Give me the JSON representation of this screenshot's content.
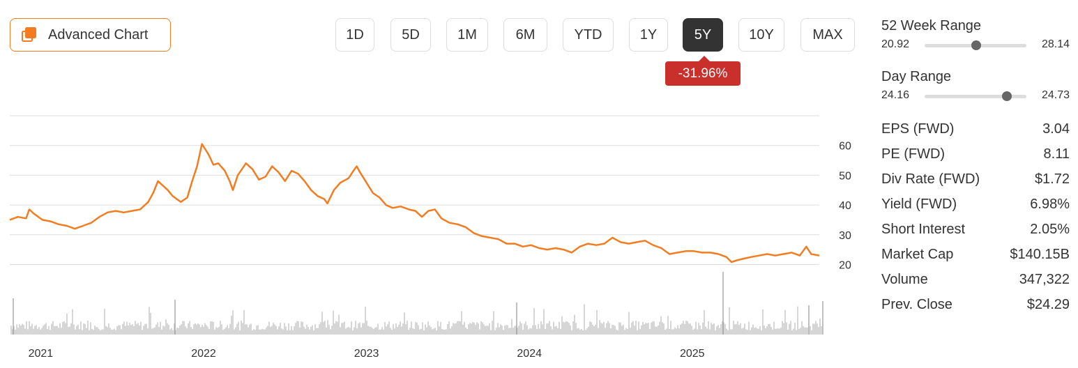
{
  "header": {
    "advanced_chart_label": "Advanced Chart",
    "advanced_chart_icon": "layers-icon",
    "ranges": [
      "1D",
      "5D",
      "1M",
      "6M",
      "YTD",
      "1Y",
      "5Y",
      "10Y",
      "MAX"
    ],
    "active_range": "5Y",
    "change_label": "-31.96%"
  },
  "colors": {
    "accent": "#f47c20",
    "line": "#f47c20",
    "volume": "#bbbbbb",
    "grid": "#dddddd",
    "negative": "#c9302c",
    "active_button": "#333333"
  },
  "ranges_panel": {
    "week52": {
      "title": "52 Week Range",
      "low": "20.92",
      "high": "28.14",
      "position": 0.51
    },
    "day": {
      "title": "Day Range",
      "low": "24.16",
      "high": "24.73",
      "position": 0.81
    }
  },
  "stats": [
    {
      "label": "EPS (FWD)",
      "value": "3.04"
    },
    {
      "label": "PE (FWD)",
      "value": "8.11"
    },
    {
      "label": "Div Rate (FWD)",
      "value": "$1.72"
    },
    {
      "label": "Yield (FWD)",
      "value": "6.98%"
    },
    {
      "label": "Short Interest",
      "value": "2.05%"
    },
    {
      "label": "Market Cap",
      "value": "$140.15B"
    },
    {
      "label": "Volume",
      "value": "347,322"
    },
    {
      "label": "Prev. Close",
      "value": "$24.29"
    }
  ],
  "chart_data": {
    "type": "line",
    "ytick_labels": [
      "20",
      "30",
      "40",
      "50",
      "60"
    ],
    "ylim": [
      18,
      70
    ],
    "xtick_labels": [
      "2021",
      "2022",
      "2023",
      "2024",
      "2025"
    ],
    "xlim": [
      2020.85,
      2025.82
    ],
    "grid": true,
    "price_series": [
      [
        2020.85,
        35.0
      ],
      [
        2020.9,
        36.0
      ],
      [
        2020.95,
        35.5
      ],
      [
        2020.97,
        38.5
      ],
      [
        2021.0,
        37.0
      ],
      [
        2021.05,
        35.0
      ],
      [
        2021.1,
        34.5
      ],
      [
        2021.15,
        33.5
      ],
      [
        2021.2,
        33.0
      ],
      [
        2021.25,
        32.0
      ],
      [
        2021.3,
        33.0
      ],
      [
        2021.35,
        34.0
      ],
      [
        2021.4,
        36.0
      ],
      [
        2021.45,
        37.5
      ],
      [
        2021.5,
        38.0
      ],
      [
        2021.55,
        37.5
      ],
      [
        2021.6,
        38.0
      ],
      [
        2021.65,
        38.5
      ],
      [
        2021.7,
        41.0
      ],
      [
        2021.73,
        44.0
      ],
      [
        2021.76,
        48.0
      ],
      [
        2021.79,
        46.5
      ],
      [
        2021.82,
        45.0
      ],
      [
        2021.85,
        43.0
      ],
      [
        2021.9,
        41.0
      ],
      [
        2021.94,
        42.5
      ],
      [
        2021.97,
        48.0
      ],
      [
        2022.0,
        53.0
      ],
      [
        2022.03,
        60.5
      ],
      [
        2022.07,
        57.0
      ],
      [
        2022.1,
        53.5
      ],
      [
        2022.13,
        54.0
      ],
      [
        2022.17,
        51.5
      ],
      [
        2022.2,
        48.0
      ],
      [
        2022.22,
        45.0
      ],
      [
        2022.25,
        50.0
      ],
      [
        2022.3,
        54.0
      ],
      [
        2022.34,
        52.0
      ],
      [
        2022.38,
        48.5
      ],
      [
        2022.42,
        49.5
      ],
      [
        2022.46,
        53.0
      ],
      [
        2022.5,
        51.0
      ],
      [
        2022.54,
        48.0
      ],
      [
        2022.58,
        51.5
      ],
      [
        2022.62,
        50.5
      ],
      [
        2022.66,
        48.0
      ],
      [
        2022.7,
        45.0
      ],
      [
        2022.74,
        43.0
      ],
      [
        2022.78,
        42.0
      ],
      [
        2022.8,
        40.5
      ],
      [
        2022.84,
        45.0
      ],
      [
        2022.88,
        47.5
      ],
      [
        2022.93,
        49.0
      ],
      [
        2022.96,
        51.5
      ],
      [
        2022.98,
        53.0
      ],
      [
        2023.0,
        51.0
      ],
      [
        2023.04,
        47.5
      ],
      [
        2023.08,
        44.0
      ],
      [
        2023.12,
        42.5
      ],
      [
        2023.16,
        40.0
      ],
      [
        2023.2,
        39.0
      ],
      [
        2023.25,
        39.5
      ],
      [
        2023.3,
        38.5
      ],
      [
        2023.34,
        38.0
      ],
      [
        2023.38,
        36.0
      ],
      [
        2023.42,
        38.0
      ],
      [
        2023.46,
        38.5
      ],
      [
        2023.5,
        35.5
      ],
      [
        2023.55,
        34.0
      ],
      [
        2023.6,
        33.5
      ],
      [
        2023.65,
        32.5
      ],
      [
        2023.7,
        30.5
      ],
      [
        2023.75,
        29.5
      ],
      [
        2023.8,
        29.0
      ],
      [
        2023.85,
        28.5
      ],
      [
        2023.9,
        27.0
      ],
      [
        2023.95,
        27.0
      ],
      [
        2024.0,
        26.0
      ],
      [
        2024.05,
        26.5
      ],
      [
        2024.1,
        25.5
      ],
      [
        2024.15,
        25.0
      ],
      [
        2024.2,
        25.5
      ],
      [
        2024.25,
        25.0
      ],
      [
        2024.3,
        24.0
      ],
      [
        2024.35,
        26.0
      ],
      [
        2024.4,
        27.0
      ],
      [
        2024.45,
        26.5
      ],
      [
        2024.5,
        27.0
      ],
      [
        2024.55,
        29.0
      ],
      [
        2024.6,
        27.5
      ],
      [
        2024.65,
        27.0
      ],
      [
        2024.7,
        27.5
      ],
      [
        2024.75,
        28.0
      ],
      [
        2024.8,
        26.5
      ],
      [
        2024.85,
        25.5
      ],
      [
        2024.9,
        23.5
      ],
      [
        2024.95,
        24.0
      ],
      [
        2025.0,
        24.5
      ],
      [
        2025.05,
        24.5
      ],
      [
        2025.1,
        24.0
      ],
      [
        2025.15,
        24.0
      ],
      [
        2025.2,
        23.5
      ],
      [
        2025.25,
        22.5
      ],
      [
        2025.28,
        20.8
      ],
      [
        2025.32,
        21.5
      ],
      [
        2025.36,
        22.0
      ],
      [
        2025.4,
        22.5
      ],
      [
        2025.45,
        23.0
      ],
      [
        2025.5,
        23.5
      ],
      [
        2025.55,
        23.0
      ],
      [
        2025.6,
        23.5
      ],
      [
        2025.65,
        24.0
      ],
      [
        2025.7,
        23.0
      ],
      [
        2025.74,
        26.0
      ],
      [
        2025.77,
        23.5
      ],
      [
        2025.82,
        23.0
      ]
    ]
  }
}
